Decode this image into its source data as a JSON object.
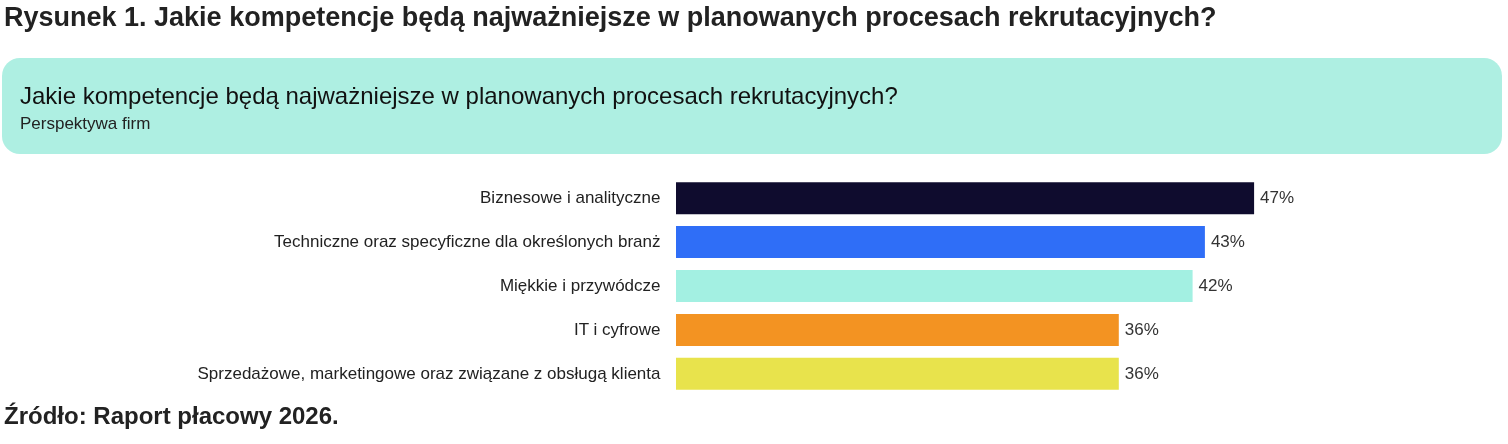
{
  "chart_data": {
    "type": "bar",
    "orientation": "horizontal",
    "title": "Rysunek 1. Jakie kompetencje będą najważniejsze w planowanych procesach rekrutacyjnych?",
    "subtitle": "Jakie kompetencje będą najważniejsze w planowanych procesach rekrutacyjnych?",
    "annotations": [
      "Perspektywa firm",
      "Źródło: Raport płacowy 2026."
    ],
    "categories": [
      "Biznesowe i analityczne",
      "Techniczne oraz specyficzne dla określonych branż",
      "Miękkie i przywódcze",
      "IT i cyfrowe",
      "Sprzedażowe, marketingowe oraz związane z obsługą klienta"
    ],
    "values": [
      47,
      43,
      42,
      36,
      36
    ],
    "value_labels": [
      "47%",
      "43%",
      "42%",
      "36%",
      "36%"
    ],
    "colors": [
      "#0f0c2e",
      "#2f6ef7",
      "#a3f0e2",
      "#f39322",
      "#e8e34c"
    ]
  }
}
